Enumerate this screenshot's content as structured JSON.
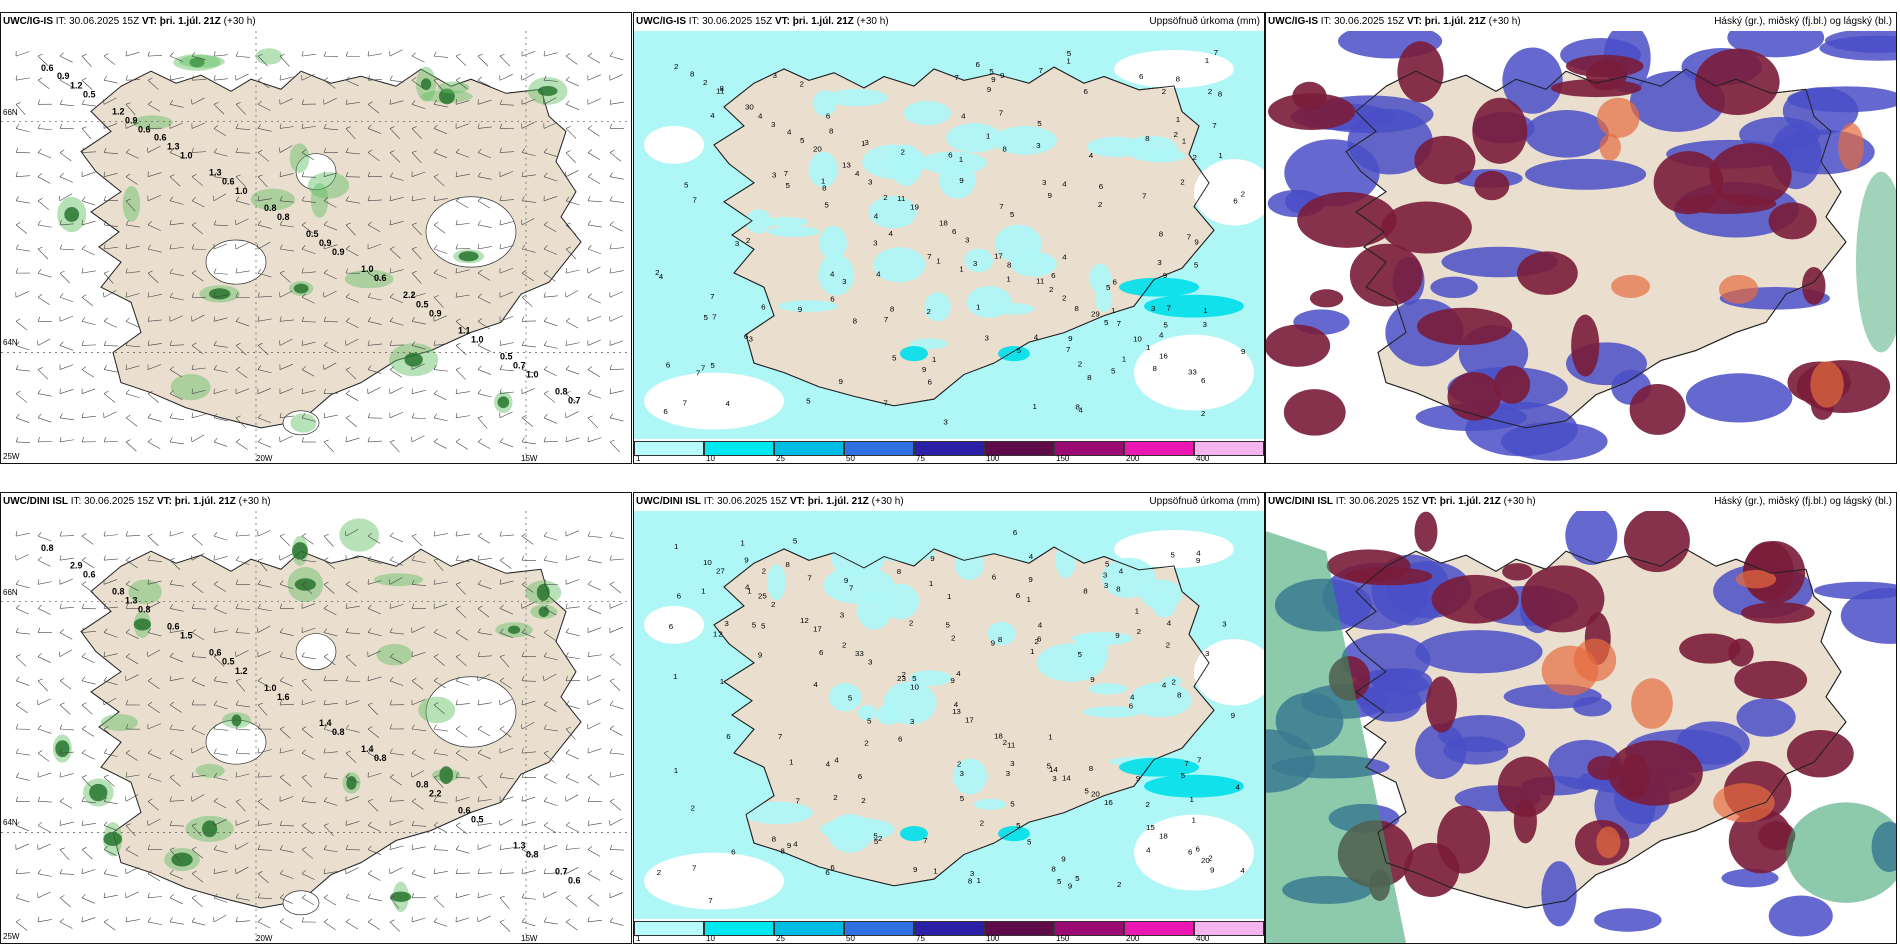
{
  "panels": [
    {
      "model": "UWC/IG-IS",
      "it_label": "IT:",
      "it": "30.06.2025 15Z",
      "vt_label": "VT:",
      "vt": "þri. 1.júl. 21Z",
      "lead": "(+30 h)",
      "right_title": "",
      "kind": "wind",
      "values": [
        "0.6",
        "0.6",
        "1.0",
        "0.9",
        "0.9",
        "1.0",
        "0.5",
        "1.0",
        "0.8",
        "0.6",
        "1.0",
        "0.7",
        "0.9",
        "0.6",
        "0.9",
        "0.5",
        "0.7",
        "1.2",
        "1.3",
        "0.8",
        "1.0",
        "1.1",
        "0.8",
        "1.2",
        "1.3",
        "0.5",
        "2.2",
        "0.5",
        "0.9",
        "0.6"
      ]
    },
    {
      "model": "UWC/IG-IS",
      "it_label": "IT:",
      "it": "30.06.2025 15Z",
      "vt_label": "VT:",
      "vt": "þri. 1.júl. 21Z",
      "lead": "(+30 h)",
      "right_title": "Uppsöfnuð úrkoma (mm)",
      "kind": "precip",
      "values": [
        "2",
        "3",
        "3",
        "3",
        "2",
        "16",
        "11",
        "20",
        "19",
        "8",
        "5",
        "6",
        "4",
        "4",
        "6",
        "2",
        "1",
        "2",
        "5",
        "11",
        "17",
        "29",
        "33",
        "30",
        "13",
        "18",
        "11",
        "10",
        "8",
        "4"
      ]
    },
    {
      "model": "UWC/IG-IS",
      "it_label": "IT:",
      "it": "30.06.2025 15Z",
      "vt_label": "VT:",
      "vt": "þri. 1.júl. 21Z",
      "lead": "(+30 h)",
      "right_title": "Háský (gr.), miðský (fj.bl.) og lágský (bl.)",
      "kind": "cloud",
      "values": []
    },
    {
      "model": "UWC/DINI ISL",
      "it_label": "IT:",
      "it": "30.06.2025 15Z",
      "vt_label": "VT:",
      "vt": "þri. 1.júl. 21Z",
      "lead": "(+30 h)",
      "right_title": "",
      "kind": "wind",
      "values": [
        "0.8",
        "0.8",
        "1.2",
        "0.8",
        "2.2",
        "0.8",
        "0.6",
        "1.5",
        "1.6",
        "0.8",
        "0.5",
        "0.6",
        "1.3",
        "0.5",
        "1.4",
        "0.8",
        "1.3",
        "2.9",
        "0.6",
        "1.0",
        "1.4",
        "0.6",
        "0.7",
        "0.8",
        "0.6"
      ]
    },
    {
      "model": "UWC/DINI ISL",
      "it_label": "IT:",
      "it": "30.06.2025 15Z",
      "vt_label": "VT:",
      "vt": "þri. 1.júl. 21Z",
      "lead": "(+30 h)",
      "right_title": "Uppsöfnuð úrkoma (mm)",
      "kind": "precip",
      "values": [
        "1",
        "2",
        "3",
        "17",
        "14",
        "18",
        "27",
        "17",
        "10",
        "11",
        "16",
        "20",
        "25",
        "33",
        "13",
        "14",
        "15",
        "10",
        "12",
        "23",
        "18",
        "20",
        "6",
        "4",
        "2"
      ]
    },
    {
      "model": "UWC/DINI ISL",
      "it_label": "IT:",
      "it": "30.06.2025 15Z",
      "vt_label": "VT:",
      "vt": "þri. 1.júl. 21Z",
      "lead": "(+30 h)",
      "right_title": "Háský (gr.), miðský (fj.bl.) og lágský (bl.)",
      "kind": "cloud",
      "values": []
    }
  ],
  "colorbar": {
    "ticks": [
      "1",
      "10",
      "25",
      "50",
      "75",
      "100",
      "150",
      "200",
      "400"
    ],
    "colors": [
      "#b7fbfb",
      "#00e8ef",
      "#00bde6",
      "#2f6fe0",
      "#2b1fa8",
      "#5e0b4a",
      "#9a0a72",
      "#ec16b0",
      "#f5b4ee"
    ]
  },
  "axes": {
    "lon_labels": [
      "20W",
      "15W"
    ],
    "lat_labels": [
      "66N",
      "64N"
    ],
    "corner": "25W"
  },
  "colors": {
    "land": "#eadfcf",
    "sea": "#ffffff",
    "precip_light": "#aff6f6",
    "green": "#5fbf62",
    "dark_green": "#1e6e26",
    "cloud_dark": "#7a1c3a",
    "cloud_blue": "#4a4fc7"
  }
}
